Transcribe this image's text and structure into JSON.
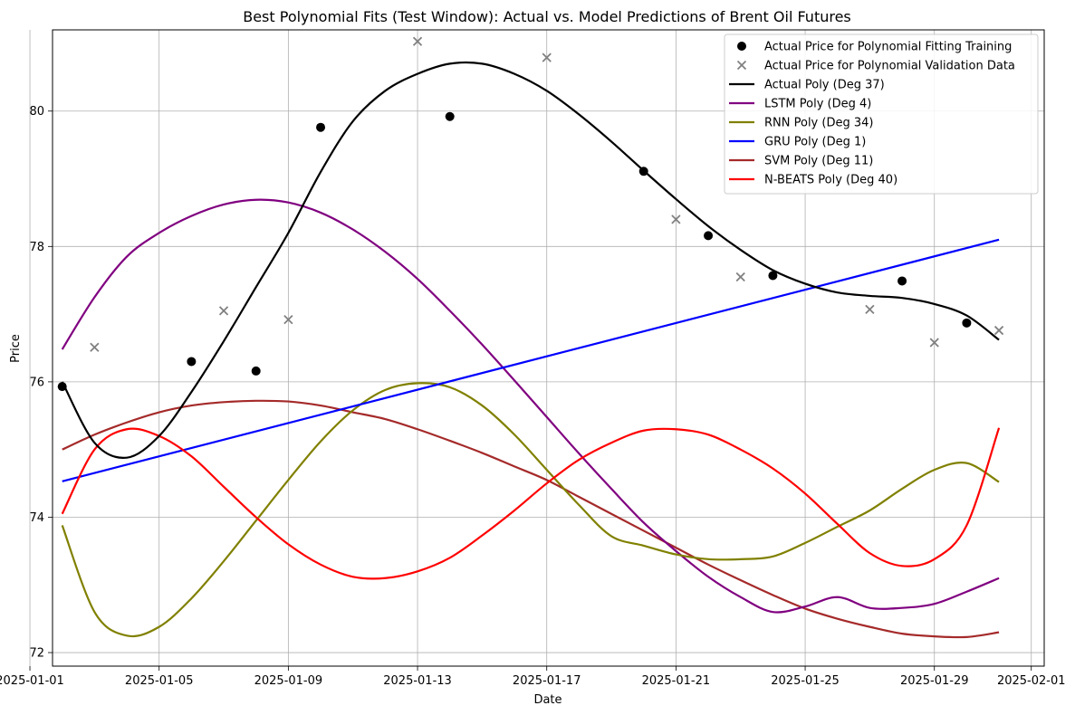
{
  "chart_data": {
    "type": "line",
    "title": "Best Polynomial Fits (Test Window): Actual vs. Model Predictions of Brent Oil Futures",
    "xlabel": "Date",
    "ylabel": "Price",
    "x_tick_labels": [
      "2025-01-01",
      "2025-01-05",
      "2025-01-09",
      "2025-01-13",
      "2025-01-17",
      "2025-01-21",
      "2025-01-25",
      "2025-01-29",
      "2025-02-01"
    ],
    "y_tick_labels": [
      "72",
      "74",
      "76",
      "78",
      "80"
    ],
    "xlim": [
      "2025-01-01.7",
      "2025-02-01.4"
    ],
    "ylim": [
      71.8,
      81.2
    ],
    "grid": true,
    "legend_position": "top-right",
    "training_points": {
      "name": "Actual Price for Polynomial Fitting Training",
      "color": "#000000",
      "marker": "circle",
      "x": [
        "2025-01-02",
        "2025-01-06",
        "2025-01-08",
        "2025-01-10",
        "2025-01-14",
        "2025-01-20",
        "2025-01-22",
        "2025-01-24",
        "2025-01-28",
        "2025-01-30"
      ],
      "y": [
        75.93,
        76.3,
        76.16,
        79.76,
        79.92,
        79.11,
        78.16,
        77.57,
        77.49,
        76.87
      ]
    },
    "validation_points": {
      "name": "Actual Price for Polynomial Validation Data",
      "color": "#808080",
      "marker": "x",
      "x": [
        "2025-01-03",
        "2025-01-07",
        "2025-01-09",
        "2025-01-13",
        "2025-01-17",
        "2025-01-21",
        "2025-01-23",
        "2025-01-27",
        "2025-01-29",
        "2025-01-31"
      ],
      "y": [
        76.51,
        77.05,
        76.92,
        81.03,
        80.79,
        78.4,
        77.55,
        77.07,
        76.58,
        76.76
      ]
    },
    "series": [
      {
        "name": "Actual Poly (Deg 37)",
        "color": "#000000",
        "x": [
          "2025-01-02",
          "2025-01-03",
          "2025-01-04",
          "2025-01-05",
          "2025-01-06",
          "2025-01-07",
          "2025-01-08",
          "2025-01-09",
          "2025-01-10",
          "2025-01-11",
          "2025-01-12",
          "2025-01-13",
          "2025-01-14",
          "2025-01-15",
          "2025-01-16",
          "2025-01-17",
          "2025-01-18",
          "2025-01-19",
          "2025-01-20",
          "2025-01-21",
          "2025-01-22",
          "2025-01-23",
          "2025-01-24",
          "2025-01-25",
          "2025-01-26",
          "2025-01-27",
          "2025-01-28",
          "2025-01-29",
          "2025-01-30",
          "2025-01-31"
        ],
        "y": [
          76.0,
          75.1,
          74.88,
          75.2,
          75.85,
          76.6,
          77.4,
          78.2,
          79.1,
          79.85,
          80.3,
          80.55,
          80.7,
          80.7,
          80.55,
          80.3,
          79.95,
          79.55,
          79.12,
          78.7,
          78.3,
          77.95,
          77.65,
          77.45,
          77.32,
          77.27,
          77.24,
          77.15,
          76.98,
          76.62
        ]
      },
      {
        "name": "LSTM Poly (Deg 4)",
        "color": "#800080",
        "x": [
          "2025-01-02",
          "2025-01-03",
          "2025-01-04",
          "2025-01-05",
          "2025-01-06",
          "2025-01-07",
          "2025-01-08",
          "2025-01-09",
          "2025-01-10",
          "2025-01-11",
          "2025-01-12",
          "2025-01-13",
          "2025-01-14",
          "2025-01-15",
          "2025-01-16",
          "2025-01-17",
          "2025-01-18",
          "2025-01-19",
          "2025-01-20",
          "2025-01-21",
          "2025-01-22",
          "2025-01-23",
          "2025-01-24",
          "2025-01-25",
          "2025-01-26",
          "2025-01-27",
          "2025-01-28",
          "2025-01-29",
          "2025-01-30",
          "2025-01-31"
        ],
        "y": [
          76.48,
          77.25,
          77.85,
          78.2,
          78.45,
          78.62,
          78.69,
          78.65,
          78.5,
          78.25,
          77.92,
          77.52,
          77.05,
          76.55,
          76.02,
          75.48,
          74.94,
          74.42,
          73.92,
          73.5,
          73.12,
          72.82,
          72.6,
          72.68,
          72.82,
          72.66,
          72.66,
          72.72,
          72.9,
          73.1
        ]
      },
      {
        "name": "RNN Poly (Deg 34)",
        "color": "#808000",
        "x": [
          "2025-01-02",
          "2025-01-03",
          "2025-01-04",
          "2025-01-05",
          "2025-01-06",
          "2025-01-07",
          "2025-01-08",
          "2025-01-09",
          "2025-01-10",
          "2025-01-11",
          "2025-01-12",
          "2025-01-13",
          "2025-01-14",
          "2025-01-15",
          "2025-01-16",
          "2025-01-17",
          "2025-01-18",
          "2025-01-19",
          "2025-01-20",
          "2025-01-21",
          "2025-01-22",
          "2025-01-23",
          "2025-01-24",
          "2025-01-25",
          "2025-01-26",
          "2025-01-27",
          "2025-01-28",
          "2025-01-29",
          "2025-01-30",
          "2025-01-31"
        ],
        "y": [
          73.88,
          72.6,
          72.25,
          72.38,
          72.8,
          73.35,
          73.95,
          74.55,
          75.12,
          75.58,
          75.88,
          75.98,
          75.92,
          75.65,
          75.22,
          74.7,
          74.18,
          73.72,
          73.58,
          73.45,
          73.38,
          73.38,
          73.42,
          73.62,
          73.86,
          74.1,
          74.42,
          74.7,
          74.8,
          74.52
        ]
      },
      {
        "name": "GRU Poly (Deg 1)",
        "color": "#0000ff",
        "x": [
          "2025-01-02",
          "2025-01-31"
        ],
        "y": [
          74.53,
          78.1
        ]
      },
      {
        "name": "SVM Poly (Deg 11)",
        "color": "#a52a2a",
        "x": [
          "2025-01-02",
          "2025-01-03",
          "2025-01-04",
          "2025-01-05",
          "2025-01-06",
          "2025-01-07",
          "2025-01-08",
          "2025-01-09",
          "2025-01-10",
          "2025-01-11",
          "2025-01-12",
          "2025-01-13",
          "2025-01-14",
          "2025-01-15",
          "2025-01-16",
          "2025-01-17",
          "2025-01-18",
          "2025-01-19",
          "2025-01-20",
          "2025-01-21",
          "2025-01-22",
          "2025-01-23",
          "2025-01-24",
          "2025-01-25",
          "2025-01-26",
          "2025-01-27",
          "2025-01-28",
          "2025-01-29",
          "2025-01-30",
          "2025-01-31"
        ],
        "y": [
          75.0,
          75.22,
          75.4,
          75.55,
          75.65,
          75.7,
          75.72,
          75.71,
          75.65,
          75.55,
          75.45,
          75.3,
          75.13,
          74.95,
          74.75,
          74.55,
          74.3,
          74.05,
          73.8,
          73.55,
          73.3,
          73.07,
          72.85,
          72.65,
          72.5,
          72.38,
          72.28,
          72.24,
          72.23,
          72.3
        ]
      },
      {
        "name": "N-BEATS Poly (Deg 40)",
        "color": "#ff0000",
        "x": [
          "2025-01-02",
          "2025-01-03",
          "2025-01-04",
          "2025-01-05",
          "2025-01-06",
          "2025-01-07",
          "2025-01-08",
          "2025-01-09",
          "2025-01-10",
          "2025-01-11",
          "2025-01-12",
          "2025-01-13",
          "2025-01-14",
          "2025-01-15",
          "2025-01-16",
          "2025-01-17",
          "2025-01-18",
          "2025-01-19",
          "2025-01-20",
          "2025-01-21",
          "2025-01-22",
          "2025-01-23",
          "2025-01-24",
          "2025-01-25",
          "2025-01-26",
          "2025-01-27",
          "2025-01-28",
          "2025-01-29",
          "2025-01-30",
          "2025-01-31"
        ],
        "y": [
          74.05,
          75.0,
          75.3,
          75.2,
          74.9,
          74.45,
          74.0,
          73.6,
          73.3,
          73.12,
          73.1,
          73.2,
          73.4,
          73.73,
          74.1,
          74.5,
          74.85,
          75.1,
          75.28,
          75.3,
          75.22,
          75.0,
          74.72,
          74.35,
          73.9,
          73.47,
          73.28,
          73.38,
          73.88,
          75.32
        ]
      }
    ]
  }
}
